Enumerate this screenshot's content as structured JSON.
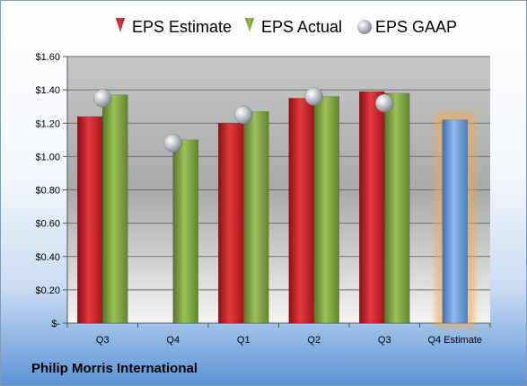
{
  "company": "Philip Morris International",
  "chart_data": {
    "type": "bar",
    "categories": [
      "Q3",
      "Q4",
      "Q1",
      "Q2",
      "Q3",
      "Q4 Estimate"
    ],
    "series": [
      {
        "name": "EPS Estimate",
        "color": "#d9262b",
        "values": [
          1.24,
          null,
          1.2,
          1.35,
          1.39,
          null
        ]
      },
      {
        "name": "EPS Actual",
        "color": "#86ad3c",
        "values": [
          1.37,
          1.1,
          1.27,
          1.36,
          1.38,
          null
        ]
      },
      {
        "name": "EPS GAAP",
        "color": "#bcc3cc",
        "values": [
          1.35,
          1.08,
          1.25,
          1.36,
          1.32,
          null
        ]
      }
    ],
    "estimate": {
      "category": "Q4 Estimate",
      "value": 1.22,
      "color": "#6a9fd8",
      "glow": "#f5a94a"
    },
    "ylim": [
      0,
      1.6
    ],
    "yticks": [
      0,
      0.2,
      0.4,
      0.6,
      0.8,
      1.0,
      1.2,
      1.4,
      1.6
    ],
    "ytick_labels": [
      "$-",
      "$0.20",
      "$0.40",
      "$0.60",
      "$0.80",
      "$1.00",
      "$1.20",
      "$1.40",
      "$1.60"
    ],
    "grid": true,
    "legend_position": "top"
  }
}
